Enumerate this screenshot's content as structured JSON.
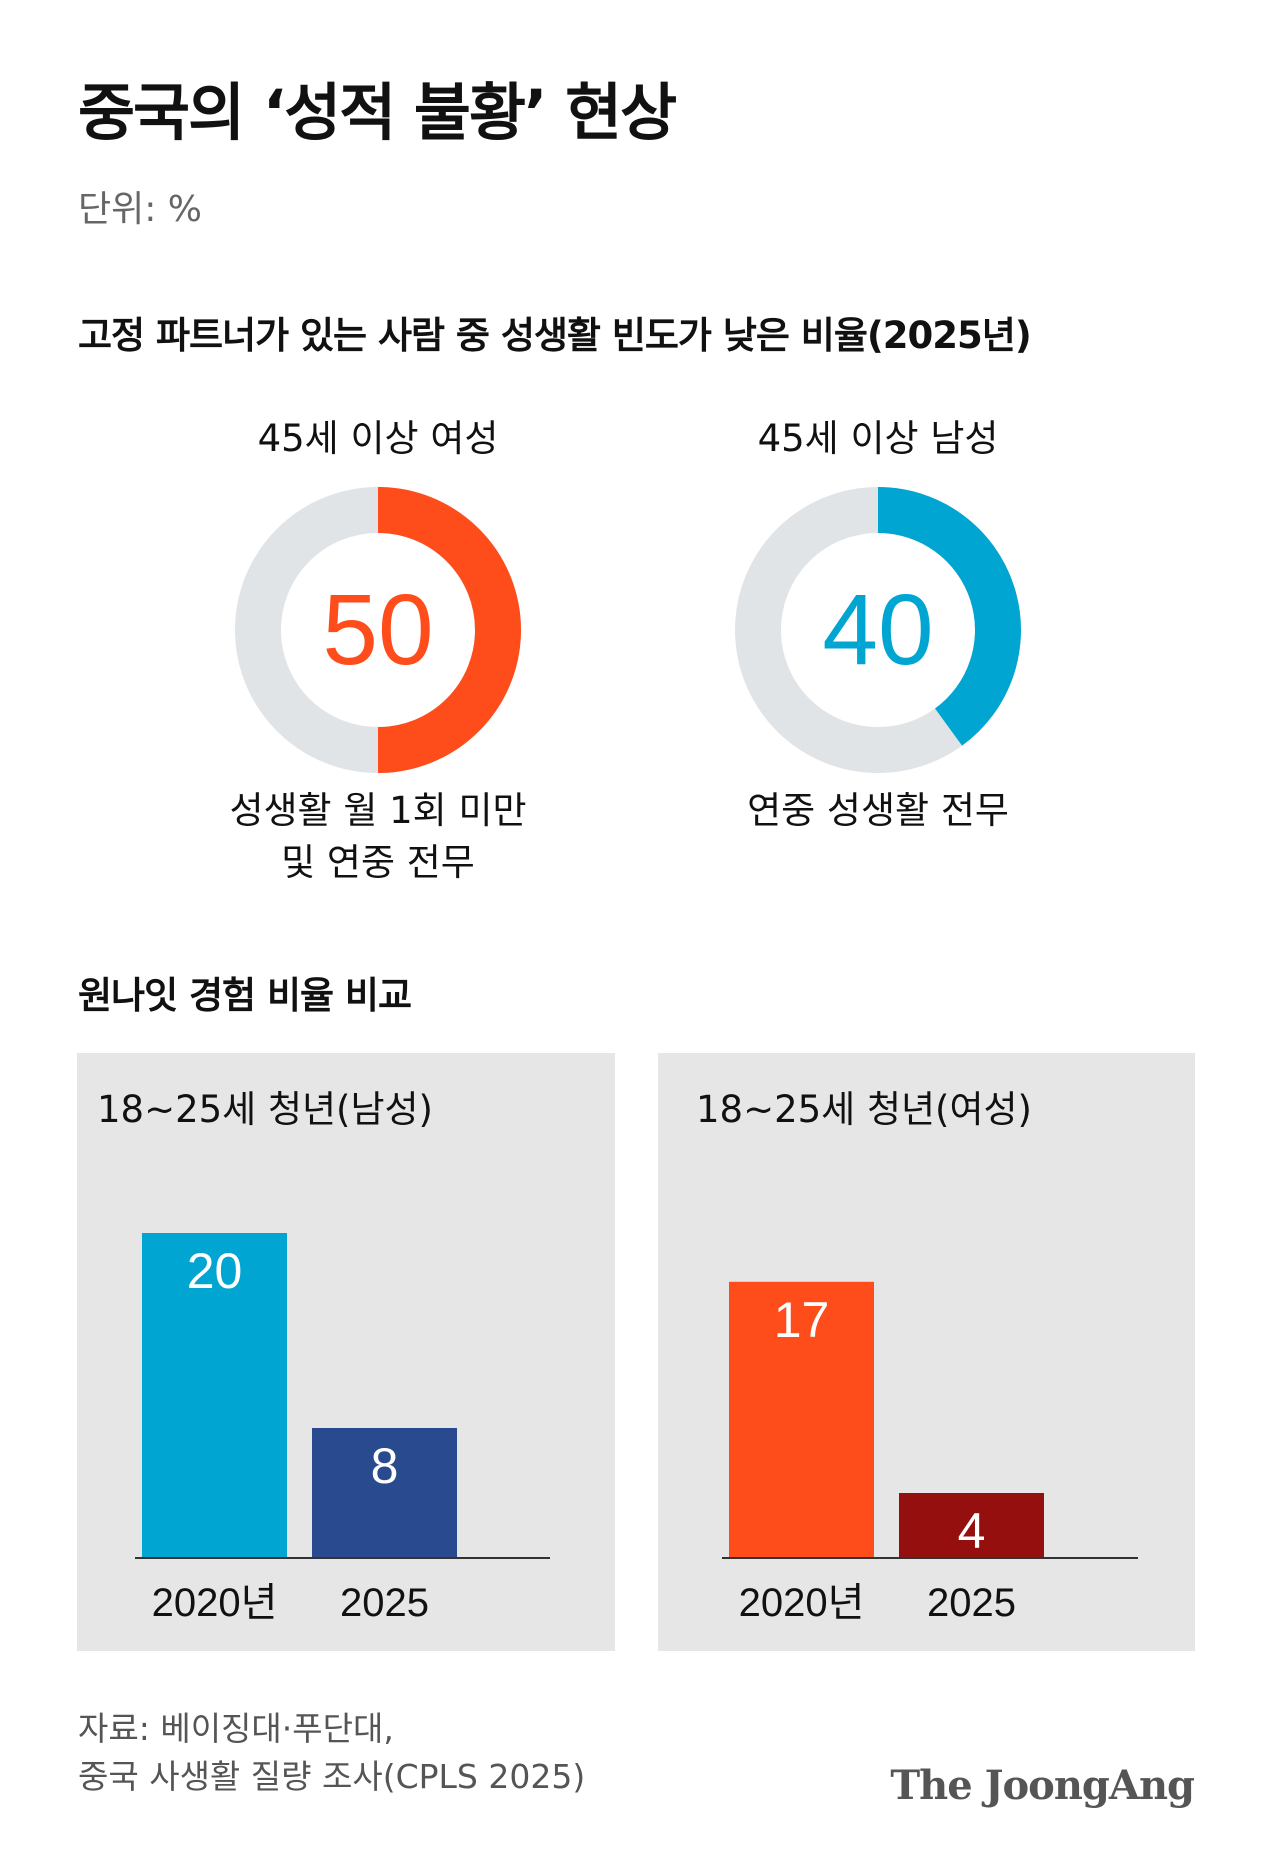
{
  "header": {
    "title": "중국의 ‘성적 불황’ 현상",
    "unit": "단위: %"
  },
  "section1": {
    "title": "고정 파트너가 있는 사람 중 성생활 빈도가 낮은 비율(2025년)"
  },
  "section2": {
    "title": "원나잇 경험 비율 비교"
  },
  "footer": {
    "source_line1": "자료: 베이징대·푸단대,",
    "source_line2": "중국 사생활 질량 조사(CPLS 2025)",
    "brand": "The JoongAng"
  },
  "colors": {
    "orange": "#ff4c1b",
    "dark_red": "#950f0f",
    "cyan": "#00a5d2",
    "navy": "#2a4a8f",
    "donut_track": "#e1e4e6",
    "panel_bg": "#e6e6e6"
  },
  "chart_data": [
    {
      "type": "pie",
      "title": "45세 이상 여성",
      "value": 50,
      "value_label": "50",
      "caption_line1": "성생활 월 1회 미만",
      "caption_line2": "및 연중 전무",
      "color": "#ff4c1b"
    },
    {
      "type": "pie",
      "title": "45세 이상 남성",
      "value": 40,
      "value_label": "40",
      "caption_line1": "연중 성생활 전무",
      "caption_line2": "",
      "color": "#00a5d2"
    },
    {
      "type": "bar",
      "title": "18~25세 청년(남성)",
      "categories": [
        "2020년",
        "2025"
      ],
      "values": [
        20,
        8
      ],
      "value_labels": [
        "20",
        "8"
      ],
      "colors": [
        "#00a5d2",
        "#2a4a8f"
      ],
      "ylim": [
        0,
        20
      ]
    },
    {
      "type": "bar",
      "title": "18~25세 청년(여성)",
      "categories": [
        "2020년",
        "2025"
      ],
      "values": [
        17,
        4
      ],
      "value_labels": [
        "17",
        "4"
      ],
      "colors": [
        "#ff4c1b",
        "#950f0f"
      ],
      "ylim": [
        0,
        20
      ]
    }
  ]
}
